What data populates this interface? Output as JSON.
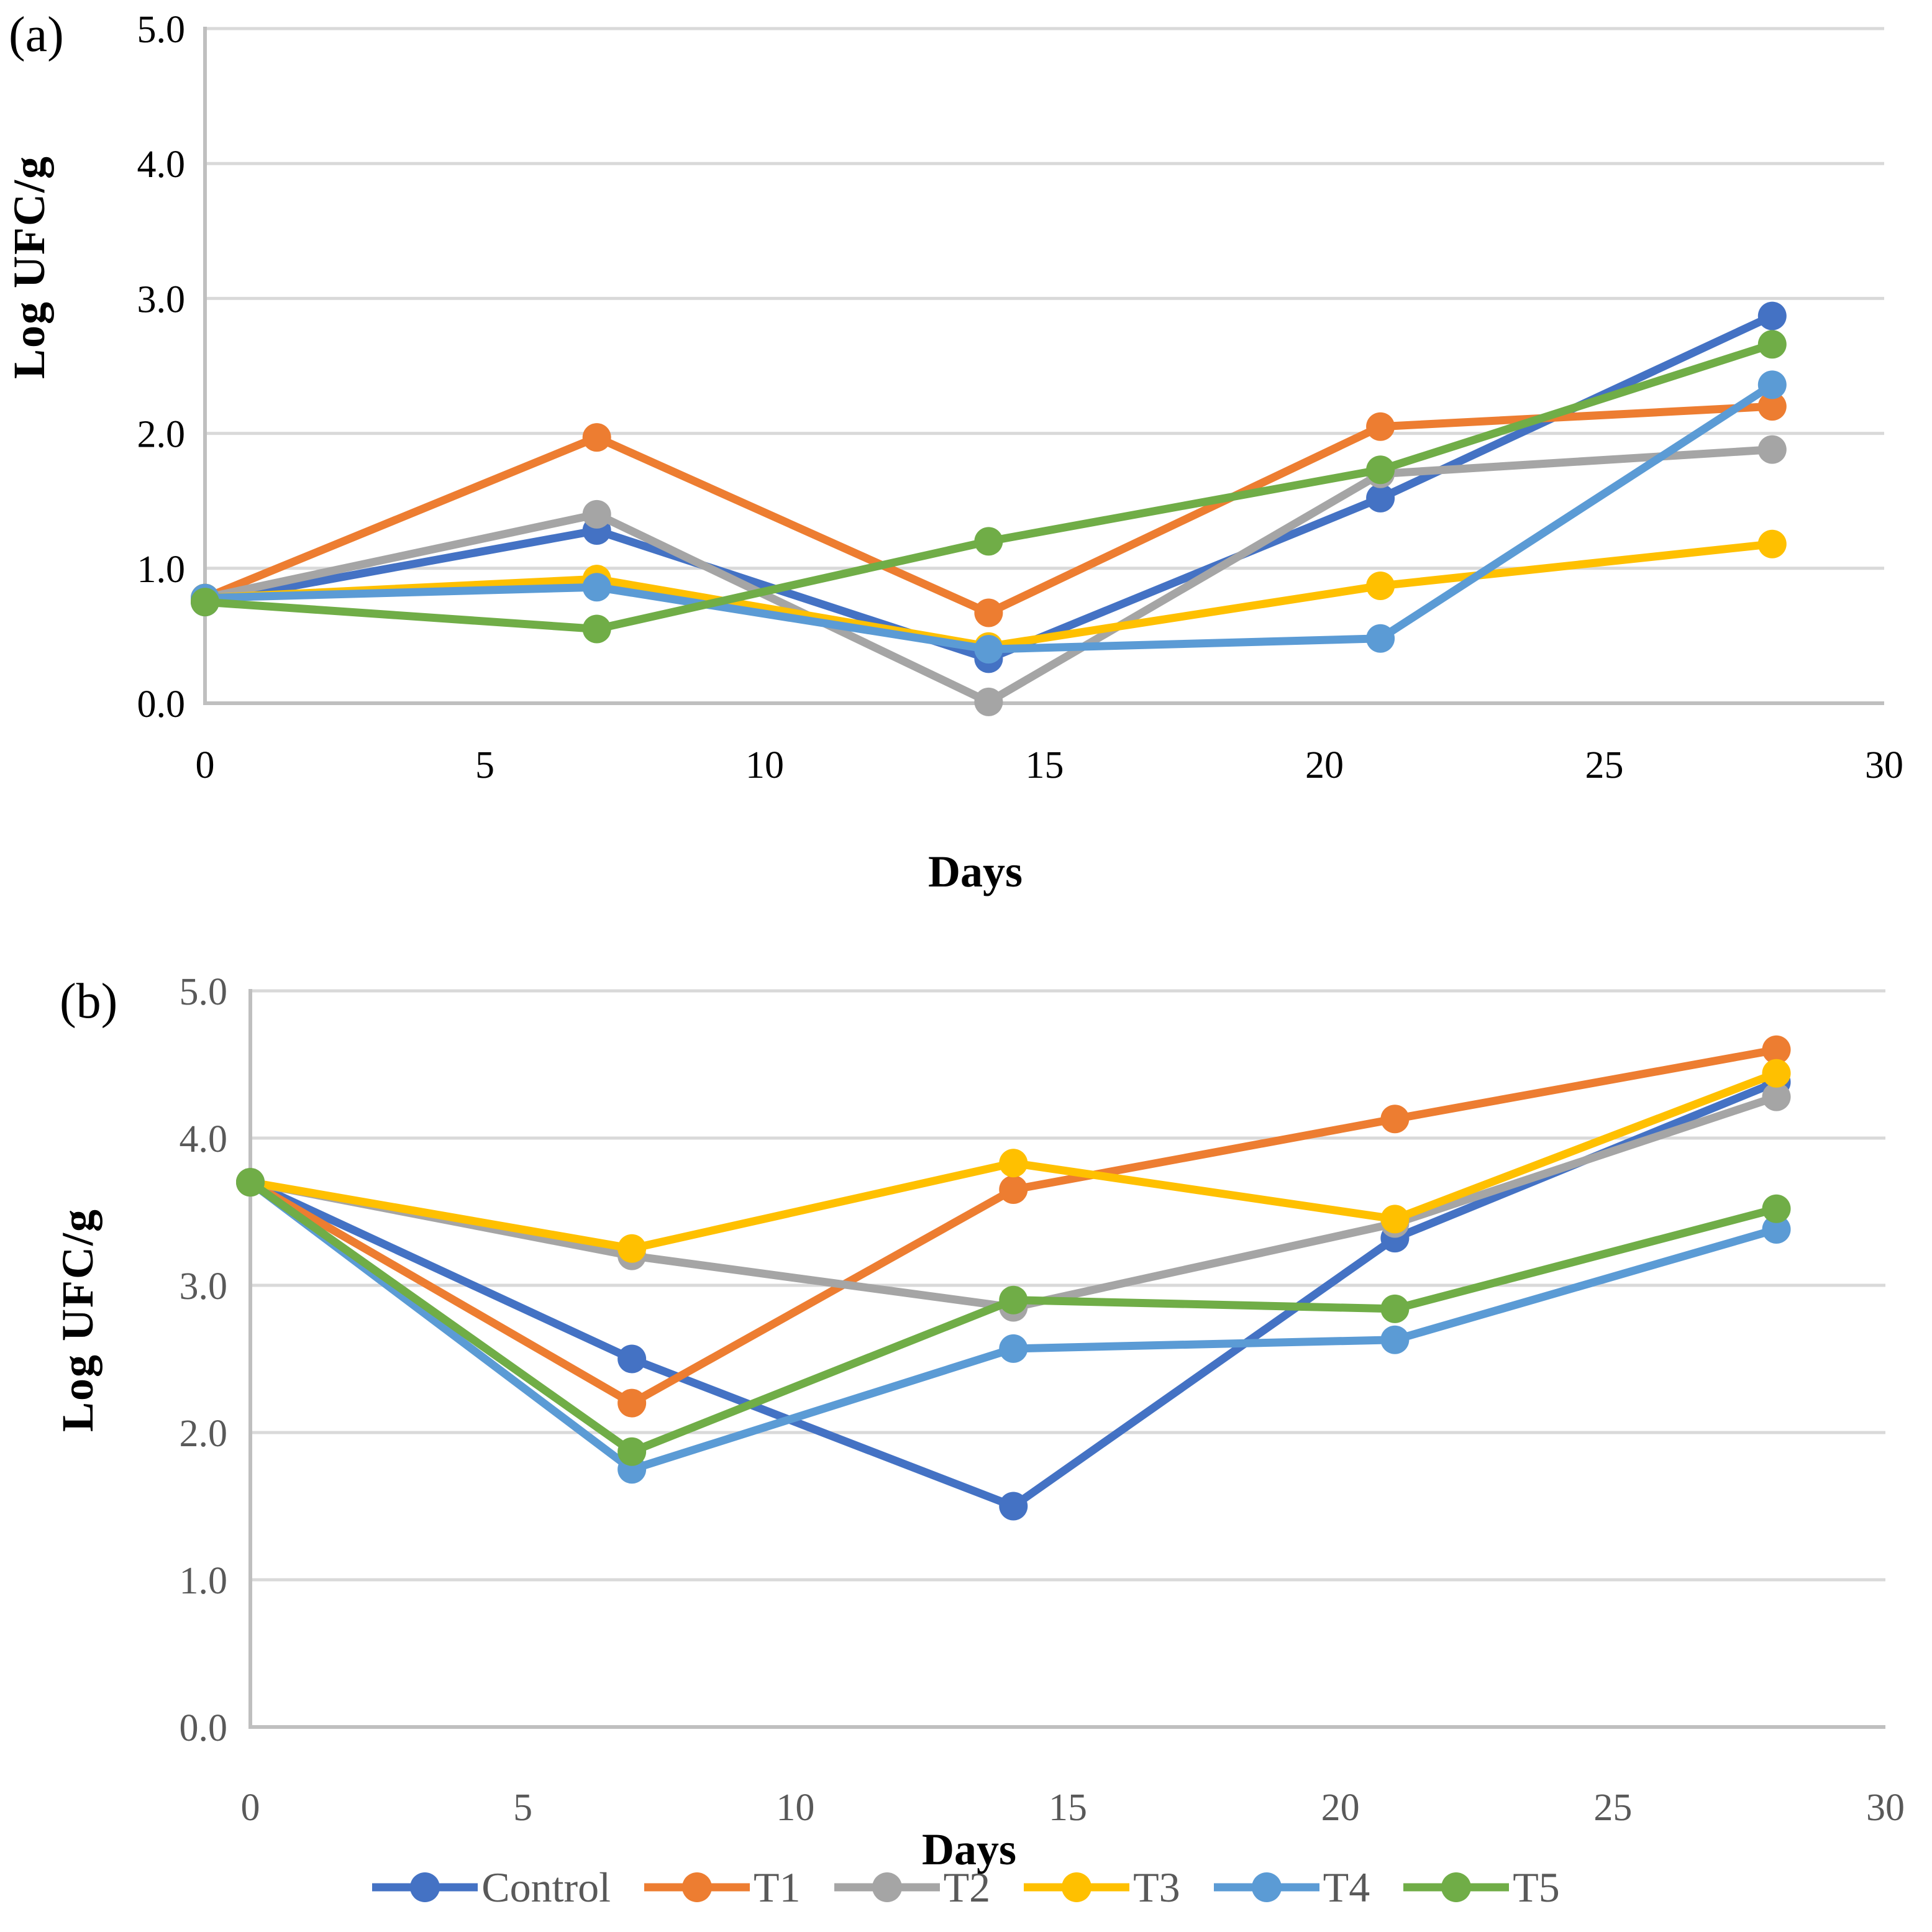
{
  "panel_a": {
    "label": "(a)",
    "ylabel": "Log UFC/g",
    "xlabel": "Days",
    "y_ticks": [
      "5.0",
      "4.0",
      "3.0",
      "2.0",
      "1.0",
      "0.0"
    ],
    "x_ticks": [
      "0",
      "5",
      "10",
      "15",
      "20",
      "25",
      "30"
    ],
    "tick_color": "#000000"
  },
  "panel_b": {
    "label": "(b)",
    "ylabel": "Log UFC/g",
    "xlabel": "Days",
    "y_ticks": [
      "5.0",
      "4.0",
      "3.0",
      "2.0",
      "1.0",
      "0.0"
    ],
    "x_ticks": [
      "0",
      "5",
      "10",
      "15",
      "20",
      "25",
      "30"
    ],
    "tick_color": "#595959"
  },
  "colors": {
    "Control": "#4472C4",
    "T1": "#ED7D31",
    "T2": "#A5A5A5",
    "T3": "#FFC000",
    "T4": "#5B9BD5",
    "T5": "#70AD47",
    "gridline": "#D9D9D9",
    "axis": "#BFBFBF"
  },
  "legend": {
    "items": [
      "Control",
      "T1",
      "T2",
      "T3",
      "T4",
      "T5"
    ]
  },
  "chart_data": [
    {
      "type": "line",
      "panel": "a",
      "title": "",
      "xlabel": "Days",
      "ylabel": "Log UFC/g",
      "x": [
        0,
        7,
        14,
        21,
        28
      ],
      "xlim": [
        0,
        30
      ],
      "ylim": [
        0,
        5
      ],
      "grid": true,
      "legend_position": "bottom-shared",
      "series": [
        {
          "name": "Control",
          "values": [
            0.75,
            1.28,
            0.33,
            1.52,
            2.87
          ]
        },
        {
          "name": "T1",
          "values": [
            0.78,
            1.97,
            0.67,
            2.05,
            2.2
          ]
        },
        {
          "name": "T2",
          "values": [
            0.78,
            1.4,
            0.01,
            1.7,
            1.88
          ]
        },
        {
          "name": "T3",
          "values": [
            0.78,
            0.92,
            0.42,
            0.87,
            1.18
          ]
        },
        {
          "name": "T4",
          "values": [
            0.78,
            0.86,
            0.4,
            0.48,
            2.36
          ]
        },
        {
          "name": "T5",
          "values": [
            0.75,
            0.55,
            1.2,
            1.73,
            2.66
          ]
        }
      ]
    },
    {
      "type": "line",
      "panel": "b",
      "title": "",
      "xlabel": "Days",
      "ylabel": "Log UFC/g",
      "x": [
        0,
        7,
        14,
        21,
        28
      ],
      "xlim": [
        0,
        30
      ],
      "ylim": [
        0,
        5
      ],
      "grid": true,
      "legend_position": "bottom-shared",
      "series": [
        {
          "name": "Control",
          "values": [
            3.7,
            2.5,
            1.5,
            3.32,
            4.38
          ]
        },
        {
          "name": "T1",
          "values": [
            3.7,
            2.2,
            3.65,
            4.13,
            4.6
          ]
        },
        {
          "name": "T2",
          "values": [
            3.7,
            3.2,
            2.85,
            3.42,
            4.28
          ]
        },
        {
          "name": "T3",
          "values": [
            3.7,
            3.25,
            3.83,
            3.45,
            4.44
          ]
        },
        {
          "name": "T4",
          "values": [
            3.7,
            1.75,
            2.57,
            2.63,
            3.38
          ]
        },
        {
          "name": "T5",
          "values": [
            3.7,
            1.87,
            2.9,
            2.84,
            3.52
          ]
        }
      ]
    }
  ]
}
